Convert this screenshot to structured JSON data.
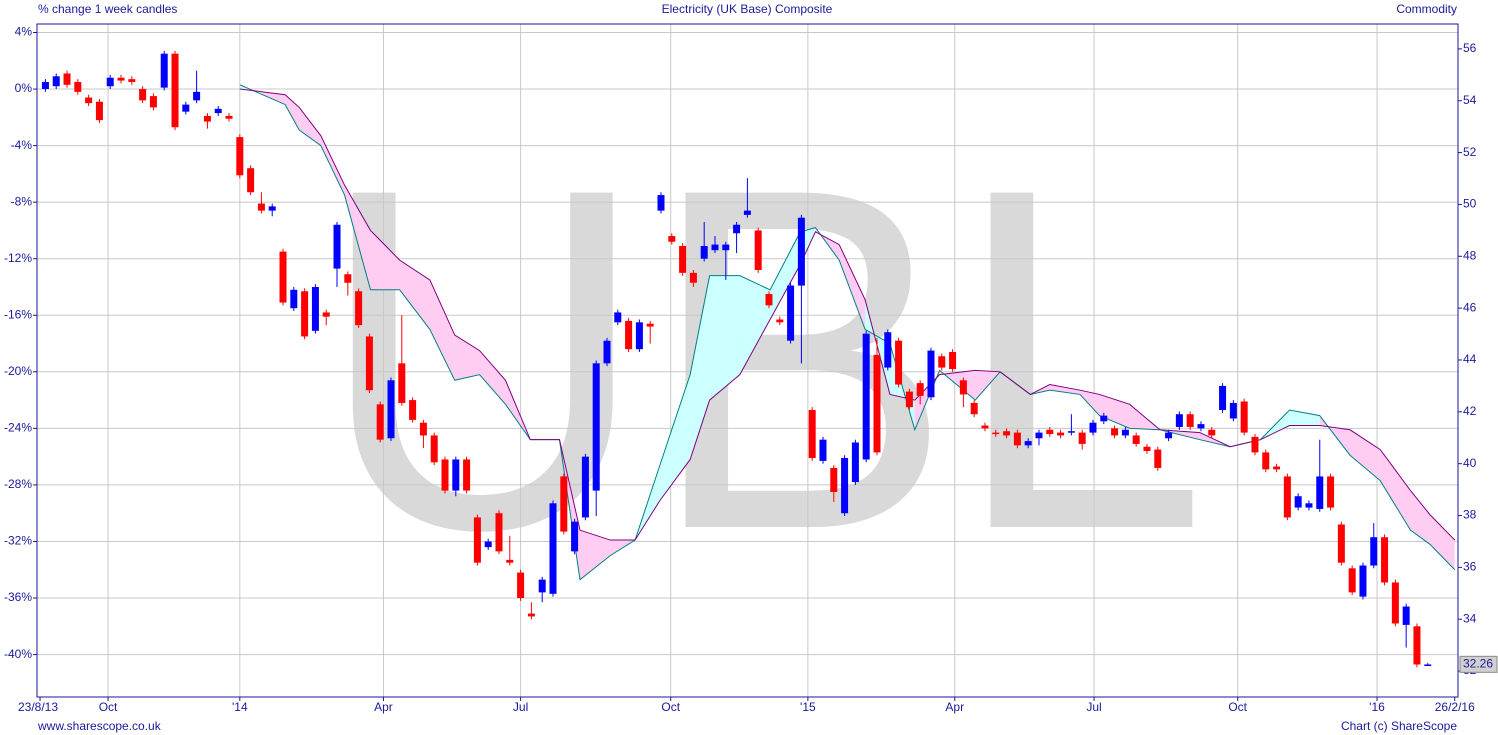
{
  "chart_data": {
    "type": "candlestick",
    "subtitle_left": "% change 1 week candles",
    "title": "Electricity (UK Base) Composite",
    "subtitle_right": "Commodity",
    "watermark": "UBL",
    "footer_left": "www.sharescope.co.uk",
    "footer_right": "Chart (c) ShareScope",
    "up_color": "#0000ff",
    "down_color": "#ff0000",
    "open": [
      0,
      0.2,
      1.1,
      0.5,
      -0.6,
      -0.9,
      0.2,
      0.8,
      0.7,
      0,
      -0.5,
      0.1,
      2.5,
      -1.6,
      -0.8,
      -1.9,
      -1.7,
      -1.9,
      -3.4,
      -5.6,
      -8.1,
      -8.6,
      -11.5,
      -15.5,
      -14.3,
      -17.1,
      -15.8,
      -12.7,
      -13.1,
      -14.3,
      -17.5,
      -22.3,
      -24.7,
      -19.4,
      -22.0,
      -23.6,
      -24.5,
      -26.2,
      -28.4,
      -26.2,
      -30.3,
      -32.4,
      -30.0,
      -33.3,
      -34.2,
      -37.1,
      -35.6,
      -35.7,
      -27.4,
      -32.7,
      -30.3,
      -28.4,
      -19.4,
      -16.5,
      -16.4,
      -18.4,
      -16.6,
      -8.6,
      -10.4,
      -11.1,
      -13.0,
      -12.0,
      -11.4,
      -11.4,
      -10.2,
      -8.9,
      -10.0,
      -14.5,
      -16.3,
      -17.8,
      -13.9,
      -22.7,
      -26.3,
      -26.8,
      -30.0,
      -27.8,
      -26.2,
      -18.8,
      -19.7,
      -17.8,
      -21.4,
      -20.8,
      -21.8,
      -18.9,
      -18.6,
      -20.6,
      -22.2,
      -23.8,
      -24.3,
      -24.2,
      -24.3,
      -25.2,
      -24.7,
      -24.1,
      -24.3,
      -24.3,
      -24.3,
      -24.3,
      -23.5,
      -24.0,
      -24.5,
      -24.5,
      -25.3,
      -25.5,
      -24.7,
      -23.9,
      -23.0,
      -24.0,
      -24.1,
      -22.7,
      -23.3,
      -22.1,
      -24.6,
      -25.7,
      -26.7,
      -27.4,
      -29.6,
      -29.6,
      -29.7,
      -27.4,
      -30.8,
      -33.9,
      -35.9,
      -33.7,
      -31.7,
      -34.9,
      -37.9,
      -38.0,
      -40.7
    ],
    "high": [
      0.7,
      1.1,
      1.3,
      0.7,
      -0.4,
      -0.7,
      1.0,
      1.0,
      0.9,
      0.2,
      -0.3,
      2.7,
      2.7,
      -0.9,
      1.3,
      -1.7,
      -1.2,
      -1.7,
      -3.2,
      -5.4,
      -7.3,
      -8.1,
      -11.3,
      -14.0,
      -14.1,
      -13.8,
      -15.6,
      -9.4,
      -12.9,
      -14.1,
      -17.3,
      -22.1,
      -20.4,
      -16.0,
      -21.8,
      -23.4,
      -24.3,
      -26.0,
      -26.0,
      -26.0,
      -30.1,
      -31.8,
      -29.8,
      -31.6,
      -34.0,
      -36.3,
      -34.5,
      -29.1,
      -27.2,
      -30.4,
      -25.8,
      -19.2,
      -17.6,
      -15.6,
      -16.2,
      -16.3,
      -16.4,
      -7.3,
      -10.2,
      -10.9,
      -12.8,
      -9.4,
      -10.4,
      -10.8,
      -9.4,
      -6.3,
      -9.8,
      -14.3,
      -16.1,
      -13.7,
      -8.9,
      -22.5,
      -24.6,
      -26.6,
      -25.9,
      -24.8,
      -17.1,
      -17.6,
      -17.0,
      -17.6,
      -21.2,
      -20.6,
      -18.3,
      -18.7,
      -18.4,
      -20.4,
      -22.0,
      -23.6,
      -24.1,
      -24.0,
      -24.1,
      -24.7,
      -24.1,
      -23.9,
      -24.1,
      -23.0,
      -24.1,
      -23.4,
      -22.9,
      -23.8,
      -23.9,
      -24.3,
      -25.1,
      -25.3,
      -24.1,
      -22.8,
      -22.8,
      -23.5,
      -23.9,
      -20.8,
      -22.0,
      -21.9,
      -24.4,
      -25.5,
      -26.5,
      -27.2,
      -28.6,
      -29.1,
      -24.8,
      -27.2,
      -30.6,
      -33.7,
      -33.5,
      -30.7,
      -31.5,
      -34.7,
      -36.4,
      -37.8,
      -40.6
    ],
    "low": [
      -0.2,
      0,
      0.1,
      -0.4,
      -1.2,
      -2.4,
      0,
      0.4,
      0.3,
      -1.0,
      -1.5,
      -0.1,
      -2.9,
      -1.8,
      -1.0,
      -2.8,
      -1.9,
      -2.3,
      -6.3,
      -7.5,
      -8.8,
      -9.0,
      -15.3,
      -15.7,
      -17.7,
      -17.3,
      -16.7,
      -14.0,
      -14.6,
      -16.9,
      -21.5,
      -25.0,
      -24.9,
      -22.4,
      -23.6,
      -25.4,
      -26.6,
      -28.6,
      -28.8,
      -28.6,
      -33.7,
      -32.6,
      -32.9,
      -33.7,
      -36.2,
      -37.5,
      -36.3,
      -35.9,
      -31.5,
      -32.9,
      -30.5,
      -30.2,
      -19.6,
      -16.7,
      -18.6,
      -18.6,
      -18.0,
      -8.8,
      -11.0,
      -13.2,
      -14.0,
      -12.2,
      -11.6,
      -13.5,
      -11.6,
      -9.1,
      -13.0,
      -15.5,
      -16.7,
      -18.0,
      -19.4,
      -26.3,
      -26.5,
      -29.2,
      -30.2,
      -28.0,
      -26.4,
      -25.9,
      -19.9,
      -21.1,
      -22.7,
      -22.3,
      -22.0,
      -19.9,
      -20.0,
      -22.5,
      -23.2,
      -24.2,
      -24.6,
      -24.7,
      -25.4,
      -25.4,
      -25.2,
      -24.6,
      -24.7,
      -24.5,
      -25.5,
      -24.5,
      -23.7,
      -24.7,
      -24.7,
      -25.3,
      -25.8,
      -27.0,
      -24.9,
      -24.1,
      -24.1,
      -24.2,
      -24.7,
      -22.9,
      -23.5,
      -24.5,
      -25.9,
      -27.1,
      -27.1,
      -30.5,
      -29.8,
      -29.8,
      -29.9,
      -29.8,
      -33.7,
      -35.8,
      -36.1,
      -33.9,
      -35.1,
      -38.0,
      -39.5,
      -40.9,
      -40.8
    ],
    "close": [
      0.5,
      0.9,
      0.3,
      -0.2,
      -1.0,
      -2.2,
      0.8,
      0.6,
      0.5,
      -0.8,
      -1.3,
      2.5,
      -2.7,
      -1.1,
      -0.2,
      -2.3,
      -1.4,
      -2.1,
      -6.1,
      -7.3,
      -8.6,
      -8.3,
      -15.1,
      -14.2,
      -17.5,
      -14.0,
      -16.1,
      -9.6,
      -13.7,
      -16.7,
      -21.3,
      -24.8,
      -20.6,
      -22.2,
      -23.4,
      -24.5,
      -26.4,
      -28.4,
      -26.2,
      -28.4,
      -33.5,
      -32.0,
      -32.7,
      -33.5,
      -36.0,
      -37.3,
      -34.7,
      -29.3,
      -31.3,
      -30.6,
      -26.0,
      -19.4,
      -17.8,
      -15.8,
      -18.4,
      -16.5,
      -16.8,
      -7.5,
      -10.8,
      -13.0,
      -13.7,
      -11.1,
      -11.0,
      -11.0,
      -9.6,
      -8.6,
      -12.8,
      -15.3,
      -16.5,
      -13.9,
      -9.1,
      -26.1,
      -24.8,
      -28.5,
      -26.1,
      -25.0,
      -17.3,
      -25.7,
      -17.2,
      -20.9,
      -22.5,
      -21.7,
      -18.5,
      -19.7,
      -19.8,
      -21.6,
      -23.0,
      -24.0,
      -24.4,
      -24.5,
      -25.2,
      -24.9,
      -24.3,
      -24.4,
      -24.5,
      -24.2,
      -25.1,
      -23.6,
      -23.1,
      -24.5,
      -24.1,
      -25.1,
      -25.6,
      -26.8,
      -24.3,
      -23.0,
      -23.9,
      -23.7,
      -24.5,
      -21.0,
      -22.2,
      -24.3,
      -25.7,
      -26.9,
      -26.9,
      -30.3,
      -28.8,
      -29.3,
      -27.4,
      -29.6,
      -33.5,
      -35.6,
      -33.7,
      -31.7,
      -34.9,
      -37.8,
      -36.6,
      -40.7,
      -40.7
    ],
    "cloud": {
      "pink": "#ffccf2",
      "cyan": "#ccffff",
      "span_a_color": "#008080",
      "span_b_color": "#800080",
      "x": [
        18.5,
        20.6,
        22.7,
        24,
        26,
        28.2,
        30.6,
        33.3,
        36.1,
        38.4,
        40.7,
        43.1,
        45.4,
        48.1,
        50,
        52.8,
        55.1,
        57.4,
        60.2,
        62,
        64.8,
        67.6,
        70.4,
        71.8,
        74,
        76.4,
        78.7,
        81,
        83.3,
        86.6,
        88.9,
        91.7,
        93.5,
        96.3,
        98.1,
        100.9,
        103.7,
        107.4,
        110.2,
        113,
        115.7,
        118.5,
        121.3,
        124.1,
        126.9,
        128.7,
        131
      ],
      "span_a": [
        0.3,
        -0.4,
        -1.1,
        -2.9,
        -4.0,
        -7.5,
        -14.2,
        -14.2,
        -17.0,
        -20.6,
        -20.2,
        -22.3,
        -24.8,
        -24.8,
        -34.7,
        -33.0,
        -31.9,
        -26.6,
        -20.2,
        -13.2,
        -13.2,
        -14.2,
        -10.1,
        -9.8,
        -12.1,
        -17.0,
        -18.0,
        -24.1,
        -19.9,
        -22.0,
        -20.0,
        -21.6,
        -21.3,
        -21.6,
        -23.1,
        -24.0,
        -24.1,
        -24.8,
        -25.3,
        -24.8,
        -22.7,
        -23.1,
        -25.9,
        -27.7,
        -31.2,
        -32.2,
        -34.0
      ],
      "span_b": [
        0,
        -0.2,
        -0.4,
        -1.3,
        -3.3,
        -6.8,
        -10.0,
        -12.1,
        -13.5,
        -17.4,
        -18.5,
        -20.6,
        -24.8,
        -24.8,
        -31.2,
        -31.9,
        -31.9,
        -29.1,
        -26.2,
        -22.0,
        -20.2,
        -16.3,
        -12.4,
        -10.1,
        -11.0,
        -14.9,
        -21.6,
        -22.0,
        -20.2,
        -19.9,
        -20.0,
        -21.6,
        -20.9,
        -21.3,
        -21.6,
        -22.3,
        -24.1,
        -24.3,
        -25.3,
        -24.8,
        -23.8,
        -23.8,
        -24.1,
        -25.5,
        -28.4,
        -30.1,
        -31.9
      ]
    },
    "last_price": 32.26,
    "xlim": [
      -0.28,
      131.3
    ],
    "xticks": [
      {
        "value": 0,
        "label": "23/8/13"
      },
      {
        "value": 6.3,
        "label": "Oct"
      },
      {
        "value": 18.5,
        "label": "'14"
      },
      {
        "value": 31.8,
        "label": "Apr"
      },
      {
        "value": 44.5,
        "label": "Jul"
      },
      {
        "value": 58.4,
        "label": "Oct"
      },
      {
        "value": 71.1,
        "label": "'15"
      },
      {
        "value": 84.7,
        "label": "Apr"
      },
      {
        "value": 97.6,
        "label": "Jul"
      },
      {
        "value": 110.9,
        "label": "Oct"
      },
      {
        "value": 123.8,
        "label": "'16"
      },
      {
        "value": 131,
        "label": "26/2/16"
      }
    ],
    "ylim": [
      4.6,
      -43.0
    ],
    "yticks": [
      {
        "value": 4,
        "label": "4%"
      },
      {
        "value": 0,
        "label": "0%"
      },
      {
        "value": -4,
        "label": "-4%"
      },
      {
        "value": -8,
        "label": "-8%"
      },
      {
        "value": -12,
        "label": "-12%"
      },
      {
        "value": -16,
        "label": "-16%"
      },
      {
        "value": -20,
        "label": "-20%"
      },
      {
        "value": -24,
        "label": "-24%"
      },
      {
        "value": -28,
        "label": "-28%"
      },
      {
        "value": -32,
        "label": "-32%"
      },
      {
        "value": -36,
        "label": "-36%"
      },
      {
        "value": -40,
        "label": "-40%"
      }
    ],
    "y2lim": [
      56.96,
      31.0
    ],
    "y2ticks": [
      32,
      34,
      36,
      38,
      40,
      42,
      44,
      46,
      48,
      50,
      52,
      54,
      56
    ],
    "grid": true
  }
}
